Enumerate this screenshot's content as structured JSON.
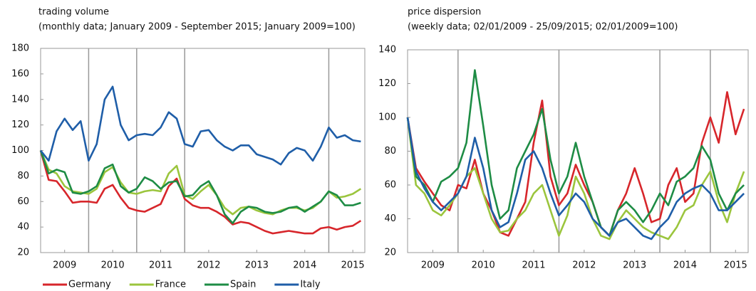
{
  "chart_data": [
    {
      "type": "line",
      "title": "trading volume",
      "subtitle": "(monthly data; January 2009 - September 2015; January 2009=100)",
      "x": [
        2009,
        2009.167,
        2009.333,
        2009.5,
        2009.667,
        2009.833,
        2010,
        2010.167,
        2010.333,
        2010.5,
        2010.667,
        2010.833,
        2011,
        2011.167,
        2011.333,
        2011.5,
        2011.667,
        2011.833,
        2012,
        2012.167,
        2012.333,
        2012.5,
        2012.667,
        2012.833,
        2013,
        2013.167,
        2013.333,
        2013.5,
        2013.667,
        2013.833,
        2014,
        2014.167,
        2014.333,
        2014.5,
        2014.667,
        2014.833,
        2015,
        2015.167,
        2015.333,
        2015.5,
        2015.667
      ],
      "xlim": [
        2009,
        2015.75
      ],
      "xticks": [
        {
          "value": 2009.5,
          "label": "2009"
        },
        {
          "value": 2010.5,
          "label": "2010"
        },
        {
          "value": 2011.5,
          "label": "2011"
        },
        {
          "value": 2012.5,
          "label": "2012"
        },
        {
          "value": 2013.5,
          "label": "2013"
        },
        {
          "value": 2014.5,
          "label": "2014"
        },
        {
          "value": 2015.5,
          "label": "2015"
        }
      ],
      "ylim": [
        20,
        180
      ],
      "yticks": [
        20,
        40,
        60,
        80,
        100,
        120,
        140,
        160,
        180
      ],
      "vlines": [
        2010,
        2011,
        2012,
        2015
      ],
      "legend": "bottom",
      "series": [
        {
          "name": "Germany",
          "color": "#d7262b",
          "values": [
            100,
            77,
            76,
            68,
            59,
            60,
            60,
            59,
            70,
            73,
            63,
            55,
            53,
            52,
            55,
            58,
            72,
            78,
            62,
            57,
            55,
            55,
            52,
            48,
            42,
            44,
            43,
            40,
            37,
            35,
            36,
            37,
            36,
            35,
            35,
            39,
            40,
            38,
            40,
            41,
            45
          ]
        },
        {
          "name": "France",
          "color": "#9bc53d",
          "values": [
            100,
            85,
            82,
            72,
            68,
            67,
            66,
            70,
            83,
            87,
            75,
            67,
            66,
            68,
            69,
            68,
            82,
            88,
            65,
            62,
            68,
            73,
            65,
            55,
            50,
            55,
            56,
            53,
            51,
            50,
            53,
            55,
            55,
            53,
            55,
            60,
            68,
            63,
            64,
            66,
            70
          ]
        },
        {
          "name": "Spain",
          "color": "#1e8c45",
          "values": [
            100,
            82,
            85,
            83,
            67,
            66,
            68,
            72,
            86,
            89,
            72,
            67,
            70,
            79,
            76,
            70,
            75,
            76,
            64,
            65,
            72,
            76,
            65,
            50,
            43,
            52,
            56,
            55,
            52,
            51,
            52,
            55,
            56,
            52,
            56,
            60,
            68,
            65,
            57,
            57,
            59
          ]
        },
        {
          "name": "Italy",
          "color": "#1f5ea8",
          "values": [
            100,
            92,
            115,
            125,
            116,
            123,
            92,
            105,
            140,
            150,
            120,
            108,
            112,
            113,
            112,
            118,
            130,
            125,
            105,
            103,
            115,
            116,
            108,
            103,
            100,
            104,
            104,
            97,
            95,
            93,
            89,
            98,
            102,
            100,
            92,
            103,
            118,
            110,
            112,
            108,
            107
          ]
        }
      ]
    },
    {
      "type": "line",
      "title": "price dispersion",
      "subtitle": "(weekly data; 02/01/2009 - 25/09/2015; 02/01/2009=100)",
      "x": [
        2009,
        2009.167,
        2009.333,
        2009.5,
        2009.667,
        2009.833,
        2010,
        2010.167,
        2010.333,
        2010.5,
        2010.667,
        2010.833,
        2011,
        2011.167,
        2011.333,
        2011.5,
        2011.667,
        2011.833,
        2012,
        2012.167,
        2012.333,
        2012.5,
        2012.667,
        2012.833,
        2013,
        2013.167,
        2013.333,
        2013.5,
        2013.667,
        2013.833,
        2014,
        2014.167,
        2014.333,
        2014.5,
        2014.667,
        2014.833,
        2015,
        2015.167,
        2015.333,
        2015.5,
        2015.667
      ],
      "xlim": [
        2009,
        2015.75
      ],
      "xticks": [
        {
          "value": 2009.5,
          "label": "2009"
        },
        {
          "value": 2010.5,
          "label": "2010"
        },
        {
          "value": 2011.5,
          "label": "2011"
        },
        {
          "value": 2012.5,
          "label": "2012"
        },
        {
          "value": 2013.5,
          "label": "2013"
        },
        {
          "value": 2014.5,
          "label": "2014"
        },
        {
          "value": 2015.5,
          "label": "2015"
        }
      ],
      "ylim": [
        20,
        140
      ],
      "yticks": [
        20,
        40,
        60,
        80,
        100,
        120,
        140
      ],
      "vlines": [
        2010,
        2012,
        2014,
        2015
      ],
      "series": [
        {
          "color": "#d7262b",
          "values": [
            100,
            70,
            62,
            55,
            48,
            45,
            60,
            58,
            75,
            55,
            45,
            32,
            30,
            40,
            50,
            85,
            110,
            65,
            48,
            55,
            72,
            60,
            50,
            35,
            30,
            45,
            55,
            70,
            55,
            38,
            40,
            60,
            70,
            50,
            55,
            85,
            100,
            85,
            115,
            90,
            105
          ]
        },
        {
          "color": "#9bc53d",
          "values": [
            100,
            60,
            55,
            45,
            42,
            48,
            55,
            65,
            70,
            55,
            40,
            32,
            33,
            40,
            45,
            55,
            60,
            45,
            30,
            42,
            65,
            55,
            40,
            30,
            28,
            38,
            45,
            40,
            35,
            32,
            30,
            28,
            35,
            45,
            48,
            60,
            68,
            50,
            38,
            55,
            68
          ]
        },
        {
          "color": "#1e8c45",
          "values": [
            100,
            65,
            60,
            50,
            62,
            65,
            70,
            85,
            128,
            95,
            60,
            40,
            45,
            70,
            80,
            90,
            105,
            75,
            55,
            65,
            85,
            65,
            50,
            35,
            30,
            45,
            50,
            45,
            38,
            45,
            55,
            48,
            62,
            65,
            70,
            83,
            75,
            55,
            45,
            55,
            60
          ]
        },
        {
          "color": "#1f5ea8",
          "values": [
            100,
            68,
            58,
            50,
            45,
            50,
            55,
            65,
            88,
            70,
            45,
            35,
            38,
            55,
            75,
            80,
            70,
            55,
            42,
            48,
            55,
            50,
            40,
            35,
            30,
            38,
            40,
            35,
            30,
            28,
            35,
            40,
            50,
            55,
            58,
            60,
            55,
            45,
            45,
            50,
            55
          ]
        }
      ]
    }
  ]
}
